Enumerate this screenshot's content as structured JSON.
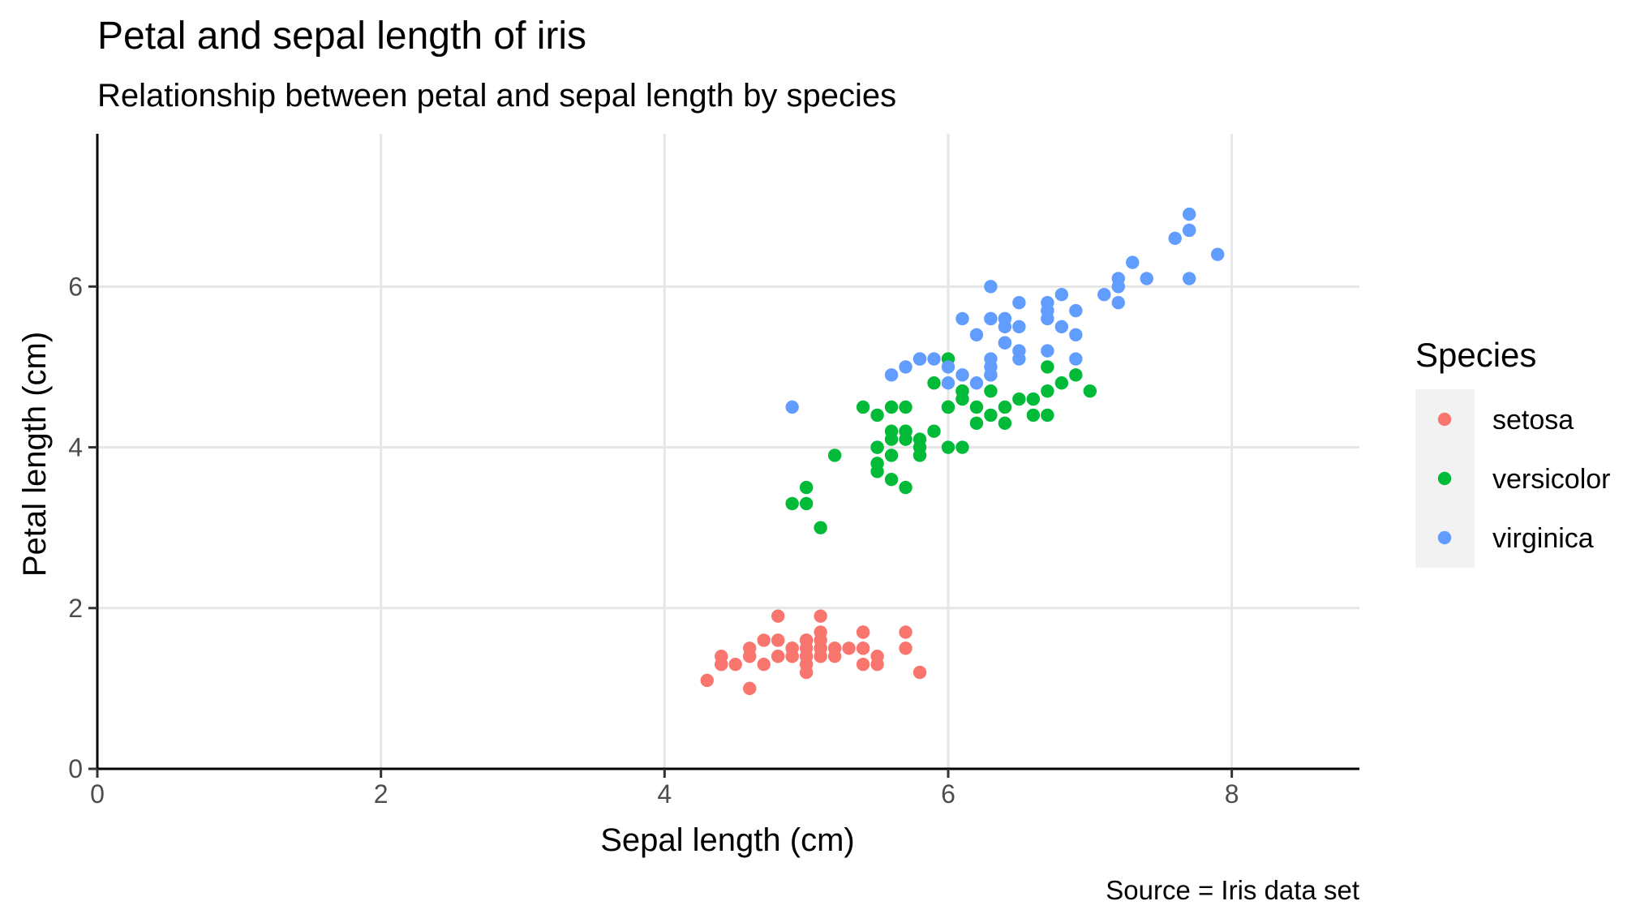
{
  "chart_data": {
    "type": "scatter",
    "title": "Petal and sepal length of iris",
    "subtitle": "Relationship between petal and sepal length by species",
    "xlabel": "Sepal length (cm)",
    "ylabel": "Petal length (cm)",
    "caption": "Source = Iris data set",
    "xlim": [
      0,
      8.9
    ],
    "ylim": [
      0,
      7.9
    ],
    "x_ticks": [
      0,
      2,
      4,
      6,
      8
    ],
    "y_ticks": [
      0,
      2,
      4,
      6
    ],
    "grid": true,
    "legend": {
      "title": "Species",
      "position": "right"
    },
    "series": [
      {
        "name": "setosa",
        "color": "#F8766D",
        "points": [
          [
            5.1,
            1.4
          ],
          [
            4.9,
            1.4
          ],
          [
            4.7,
            1.3
          ],
          [
            4.6,
            1.5
          ],
          [
            5.0,
            1.4
          ],
          [
            5.4,
            1.7
          ],
          [
            4.6,
            1.4
          ],
          [
            5.0,
            1.5
          ],
          [
            4.4,
            1.4
          ],
          [
            4.9,
            1.5
          ],
          [
            5.4,
            1.5
          ],
          [
            4.8,
            1.6
          ],
          [
            4.8,
            1.4
          ],
          [
            4.3,
            1.1
          ],
          [
            5.8,
            1.2
          ],
          [
            5.7,
            1.5
          ],
          [
            5.4,
            1.3
          ],
          [
            5.1,
            1.4
          ],
          [
            5.7,
            1.7
          ],
          [
            5.1,
            1.5
          ],
          [
            5.4,
            1.7
          ],
          [
            5.1,
            1.5
          ],
          [
            4.6,
            1.0
          ],
          [
            5.1,
            1.7
          ],
          [
            4.8,
            1.9
          ],
          [
            5.0,
            1.6
          ],
          [
            5.0,
            1.6
          ],
          [
            5.2,
            1.5
          ],
          [
            5.2,
            1.4
          ],
          [
            4.7,
            1.6
          ],
          [
            4.8,
            1.6
          ],
          [
            5.4,
            1.5
          ],
          [
            5.2,
            1.5
          ],
          [
            5.5,
            1.4
          ],
          [
            4.9,
            1.5
          ],
          [
            5.0,
            1.2
          ],
          [
            5.5,
            1.3
          ],
          [
            4.9,
            1.4
          ],
          [
            4.4,
            1.3
          ],
          [
            5.1,
            1.5
          ],
          [
            5.0,
            1.3
          ],
          [
            4.5,
            1.3
          ],
          [
            4.4,
            1.3
          ],
          [
            5.0,
            1.6
          ],
          [
            5.1,
            1.9
          ],
          [
            4.8,
            1.4
          ],
          [
            5.1,
            1.6
          ],
          [
            4.6,
            1.4
          ],
          [
            5.3,
            1.5
          ],
          [
            5.0,
            1.4
          ]
        ]
      },
      {
        "name": "versicolor",
        "color": "#00BA38",
        "points": [
          [
            7.0,
            4.7
          ],
          [
            6.4,
            4.5
          ],
          [
            6.9,
            4.9
          ],
          [
            5.5,
            4.0
          ],
          [
            6.5,
            4.6
          ],
          [
            5.7,
            4.5
          ],
          [
            6.3,
            4.7
          ],
          [
            4.9,
            3.3
          ],
          [
            6.6,
            4.6
          ],
          [
            5.2,
            3.9
          ],
          [
            5.0,
            3.5
          ],
          [
            5.9,
            4.2
          ],
          [
            6.0,
            4.0
          ],
          [
            6.1,
            4.7
          ],
          [
            5.6,
            3.6
          ],
          [
            6.7,
            4.4
          ],
          [
            5.6,
            4.5
          ],
          [
            5.8,
            4.1
          ],
          [
            6.2,
            4.5
          ],
          [
            5.6,
            3.9
          ],
          [
            5.9,
            4.8
          ],
          [
            6.1,
            4.0
          ],
          [
            6.3,
            4.9
          ],
          [
            6.1,
            4.7
          ],
          [
            6.4,
            4.3
          ],
          [
            6.6,
            4.4
          ],
          [
            6.8,
            4.8
          ],
          [
            6.7,
            5.0
          ],
          [
            6.0,
            4.5
          ],
          [
            5.7,
            3.5
          ],
          [
            5.5,
            3.8
          ],
          [
            5.5,
            3.7
          ],
          [
            5.8,
            3.9
          ],
          [
            6.0,
            5.1
          ],
          [
            5.4,
            4.5
          ],
          [
            6.0,
            4.5
          ],
          [
            6.7,
            4.7
          ],
          [
            6.3,
            4.4
          ],
          [
            5.6,
            4.1
          ],
          [
            5.5,
            4.0
          ],
          [
            5.5,
            4.4
          ],
          [
            6.1,
            4.6
          ],
          [
            5.8,
            4.0
          ],
          [
            5.0,
            3.3
          ],
          [
            5.6,
            4.2
          ],
          [
            5.7,
            4.2
          ],
          [
            5.7,
            4.2
          ],
          [
            6.2,
            4.3
          ],
          [
            5.1,
            3.0
          ],
          [
            5.7,
            4.1
          ]
        ]
      },
      {
        "name": "virginica",
        "color": "#619CFF",
        "points": [
          [
            6.3,
            6.0
          ],
          [
            5.8,
            5.1
          ],
          [
            7.1,
            5.9
          ],
          [
            6.3,
            5.6
          ],
          [
            6.5,
            5.8
          ],
          [
            7.6,
            6.6
          ],
          [
            4.9,
            4.5
          ],
          [
            7.3,
            6.3
          ],
          [
            6.7,
            5.8
          ],
          [
            7.2,
            6.1
          ],
          [
            6.5,
            5.1
          ],
          [
            6.4,
            5.3
          ],
          [
            6.8,
            5.5
          ],
          [
            5.7,
            5.0
          ],
          [
            5.8,
            5.1
          ],
          [
            6.4,
            5.3
          ],
          [
            6.5,
            5.5
          ],
          [
            7.7,
            6.7
          ],
          [
            7.7,
            6.9
          ],
          [
            6.0,
            5.0
          ],
          [
            6.9,
            5.7
          ],
          [
            5.6,
            4.9
          ],
          [
            7.7,
            6.7
          ],
          [
            6.3,
            4.9
          ],
          [
            6.7,
            5.7
          ],
          [
            7.2,
            6.0
          ],
          [
            6.2,
            4.8
          ],
          [
            6.1,
            4.9
          ],
          [
            6.4,
            5.6
          ],
          [
            7.2,
            5.8
          ],
          [
            7.4,
            6.1
          ],
          [
            7.9,
            6.4
          ],
          [
            6.4,
            5.6
          ],
          [
            6.3,
            5.1
          ],
          [
            6.1,
            5.6
          ],
          [
            7.7,
            6.1
          ],
          [
            6.3,
            5.6
          ],
          [
            6.4,
            5.5
          ],
          [
            6.0,
            4.8
          ],
          [
            6.9,
            5.4
          ],
          [
            6.7,
            5.6
          ],
          [
            6.9,
            5.1
          ],
          [
            5.8,
            5.1
          ],
          [
            6.8,
            5.9
          ],
          [
            6.7,
            5.7
          ],
          [
            6.7,
            5.2
          ],
          [
            6.3,
            5.0
          ],
          [
            6.5,
            5.2
          ],
          [
            6.2,
            5.4
          ],
          [
            5.9,
            5.1
          ]
        ]
      }
    ]
  }
}
